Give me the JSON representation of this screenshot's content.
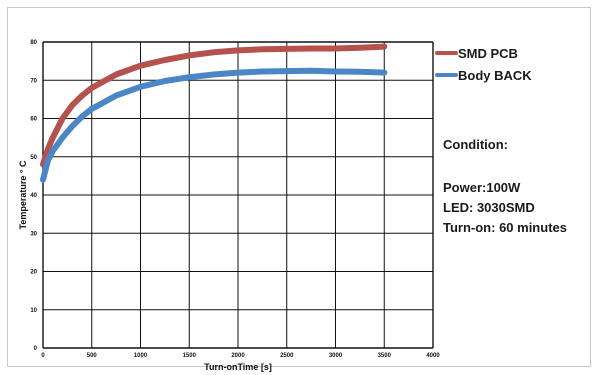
{
  "chart_data": {
    "type": "line",
    "xlabel": "Turn-onTime [s]",
    "ylabel": "Temperature ° C",
    "xlim": [
      0,
      4000
    ],
    "ylim": [
      0,
      80
    ],
    "x_ticks": [
      "0",
      "500",
      "1000",
      "1500",
      "2000",
      "2500",
      "3000",
      "3500",
      "4000"
    ],
    "y_ticks": [
      "0",
      "10",
      "20",
      "30",
      "40",
      "50",
      "60",
      "70",
      "80"
    ],
    "grid": true,
    "legend_position": "top-right",
    "x": [
      0,
      50,
      100,
      200,
      300,
      400,
      500,
      750,
      1000,
      1250,
      1500,
      1750,
      2000,
      2250,
      2500,
      2750,
      3000,
      3250,
      3500
    ],
    "series": [
      {
        "name": "SMD PCB",
        "color": "#b5524e",
        "values": [
          48,
          52,
          55,
          60,
          63.5,
          66,
          68,
          71.5,
          73.8,
          75.3,
          76.5,
          77.3,
          77.8,
          78.1,
          78.2,
          78.3,
          78.3,
          78.5,
          78.8
        ]
      },
      {
        "name": "Body BACK",
        "color": "#4b86c6",
        "values": [
          44,
          49,
          51.5,
          55,
          58,
          60.5,
          62.5,
          66,
          68.3,
          69.8,
          70.8,
          71.5,
          72,
          72.3,
          72.4,
          72.5,
          72.3,
          72.2,
          72
        ]
      }
    ]
  },
  "condition": {
    "heading": "Condition:",
    "power": "Power:100W",
    "led": "LED: 3030SMD",
    "turn_on": "Turn-on: 60 minutes"
  }
}
